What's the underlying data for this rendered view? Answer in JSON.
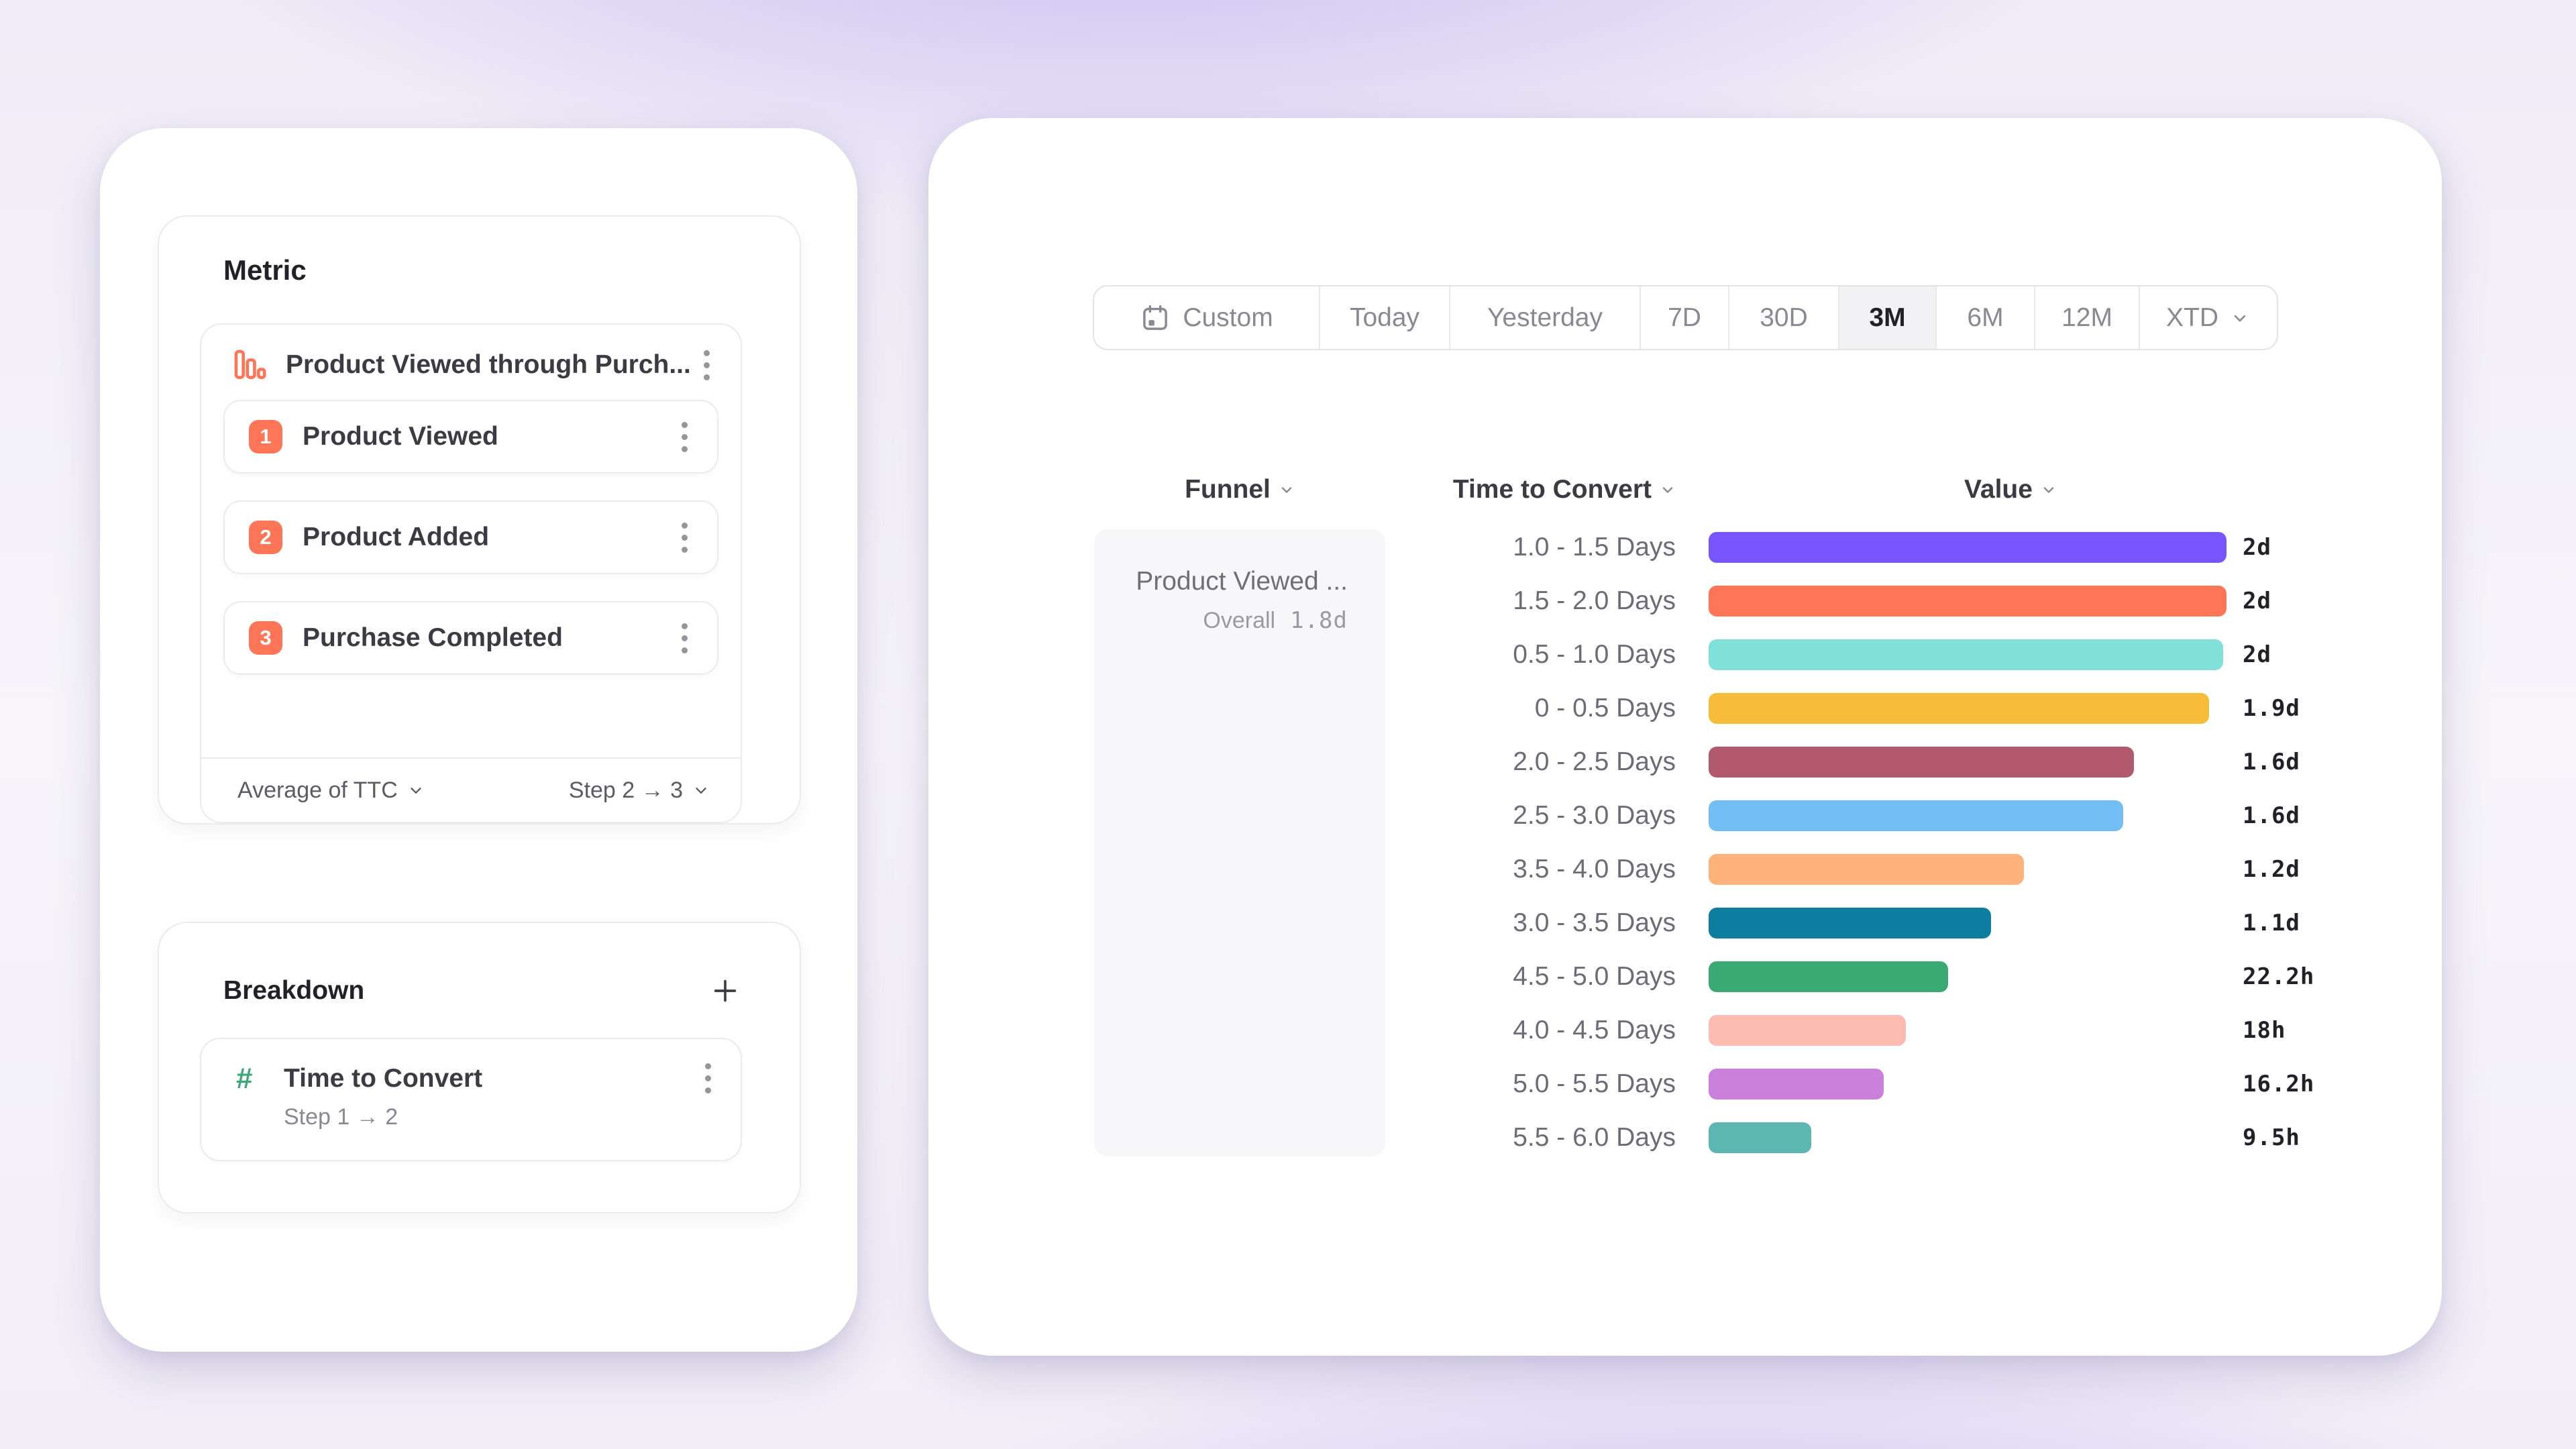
{
  "left_panel": {
    "metric": {
      "section_title": "Metric",
      "funnel": {
        "title": "Product Viewed through Purch...",
        "steps": [
          {
            "number": "1",
            "label": "Product Viewed"
          },
          {
            "number": "2",
            "label": "Product Added"
          },
          {
            "number": "3",
            "label": "Purchase Completed"
          }
        ],
        "measurement": "Average of TTC",
        "step_range": "Step 2 → 3"
      }
    },
    "breakdown": {
      "section_title": "Breakdown",
      "property": {
        "name": "Time to Convert",
        "detail": "Step 1 → 2"
      }
    }
  },
  "right_panel": {
    "date_picker": {
      "options": [
        {
          "label": "Custom",
          "icon": "calendar"
        },
        {
          "label": "Today"
        },
        {
          "label": "Yesterday"
        },
        {
          "label": "7D"
        },
        {
          "label": "30D"
        },
        {
          "label": "3M",
          "selected": true
        },
        {
          "label": "6M"
        },
        {
          "label": "12M"
        },
        {
          "label": "XTD",
          "has_chevron": true
        }
      ]
    },
    "table": {
      "headers": [
        {
          "label": "Funnel"
        },
        {
          "label": "Time to Convert"
        },
        {
          "label": "Value"
        }
      ],
      "funnel_cell": {
        "title": "Product Viewed ...",
        "overall_label": "Overall",
        "overall_value": "1.8d"
      }
    }
  },
  "chart_data": {
    "type": "bar",
    "orientation": "horizontal",
    "title": "Time to Convert breakdown of Product Viewed funnel",
    "value_axis_label": "Value",
    "category_axis_label": "Time to Convert",
    "max_hours": 48,
    "rows": [
      {
        "label": "1.0 - 1.5 Days",
        "value": "2d",
        "hours": 48,
        "color": "#7856FF"
      },
      {
        "label": "1.5 - 2.0 Days",
        "value": "2d",
        "hours": 48,
        "color": "#FF7557"
      },
      {
        "label": "0.5 - 1.0 Days",
        "value": "2d",
        "hours": 47.7,
        "color": "#80E1D9"
      },
      {
        "label": "0 - 0.5 Days",
        "value": "1.9d",
        "hours": 46.4,
        "color": "#F8BC3B"
      },
      {
        "label": "2.0 - 2.5 Days",
        "value": "1.6d",
        "hours": 39.4,
        "color": "#B2596E"
      },
      {
        "label": "2.5 - 3.0 Days",
        "value": "1.6d",
        "hours": 38.4,
        "color": "#72BEF4"
      },
      {
        "label": "3.5 - 4.0 Days",
        "value": "1.2d",
        "hours": 29.2,
        "color": "#FFB27A"
      },
      {
        "label": "3.0 - 3.5 Days",
        "value": "1.1d",
        "hours": 26.2,
        "color": "#0D7EA0"
      },
      {
        "label": "4.5 - 5.0 Days",
        "value": "22.2h",
        "hours": 22.2,
        "color": "#3BA974"
      },
      {
        "label": "4.0 - 4.5 Days",
        "value": "18h",
        "hours": 18.3,
        "color": "#FEBBB2"
      },
      {
        "label": "5.0 - 5.5 Days",
        "value": "16.2h",
        "hours": 16.2,
        "color": "#CA80DC"
      },
      {
        "label": "5.5 - 6.0 Days",
        "value": "9.5h",
        "hours": 9.5,
        "color": "#5BB7AF"
      }
    ]
  },
  "colors": {
    "accent_coral": "#FF7557",
    "accent_green": "#3BA974",
    "text_dark": "#232128",
    "text_gray": "#6E6B76",
    "border": "#ECEAEE"
  }
}
